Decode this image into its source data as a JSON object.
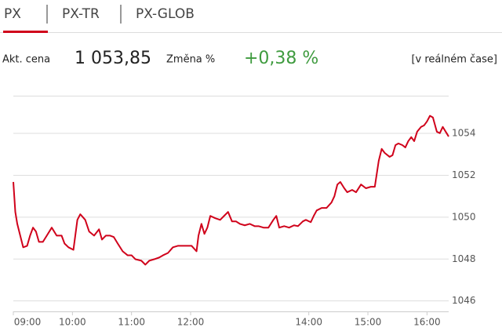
{
  "tabs": [
    "PX",
    "PX-TR",
    "PX-GLOB"
  ],
  "quote": {
    "price_label": "Akt. cena",
    "price": "1 053,85",
    "change_label": "Změna %",
    "change": "+0,38 %",
    "realtime": "[v reálném čase]"
  },
  "chart_data": {
    "type": "line",
    "color": "#d0021b",
    "grid": true,
    "xlim": [
      0,
      442
    ],
    "ylim": [
      1045.5,
      1055.8
    ],
    "xticks": [
      {
        "value": 0,
        "label": "09:00"
      },
      {
        "value": 60,
        "label": "10:00"
      },
      {
        "value": 120,
        "label": "11:00"
      },
      {
        "value": 180,
        "label": "12:00"
      },
      {
        "value": 300,
        "label": "14:00"
      },
      {
        "value": 360,
        "label": "15:00"
      },
      {
        "value": 420,
        "label": "16:00"
      }
    ],
    "yticks": [
      1046,
      1048,
      1050,
      1052,
      1054
    ],
    "x": [
      0,
      2,
      4,
      7,
      10,
      14,
      17,
      20,
      23,
      26,
      30,
      34,
      39,
      44,
      49,
      52,
      56,
      61,
      65,
      68,
      73,
      77,
      82,
      87,
      90,
      94,
      98,
      102,
      106,
      111,
      116,
      120,
      124,
      130,
      134,
      138,
      143,
      148,
      152,
      157,
      162,
      167,
      171,
      176,
      181,
      186,
      188,
      191,
      194,
      197,
      200,
      205,
      210,
      214,
      218,
      222,
      226,
      230,
      235,
      240,
      245,
      249,
      254,
      259,
      264,
      267,
      270,
      275,
      280,
      285,
      289,
      294,
      297,
      302,
      305,
      308,
      313,
      318,
      323,
      326,
      329,
      332,
      336,
      339,
      344,
      348,
      353,
      358,
      363,
      367,
      371,
      374,
      377,
      382,
      385,
      388,
      391,
      395,
      398,
      401,
      404,
      407,
      410,
      414,
      417,
      420,
      423,
      426,
      430,
      433,
      436,
      439,
      442
    ],
    "values": [
      1051.68,
      1050.25,
      1049.68,
      1049.12,
      1048.56,
      1048.63,
      1049.12,
      1049.5,
      1049.31,
      1048.82,
      1048.82,
      1049.12,
      1049.5,
      1049.12,
      1049.12,
      1048.74,
      1048.56,
      1048.44,
      1049.87,
      1050.14,
      1049.87,
      1049.31,
      1049.12,
      1049.42,
      1048.93,
      1049.12,
      1049.12,
      1049.05,
      1048.74,
      1048.37,
      1048.18,
      1048.18,
      1047.99,
      1047.92,
      1047.73,
      1047.92,
      1047.99,
      1048.07,
      1048.18,
      1048.29,
      1048.56,
      1048.63,
      1048.63,
      1048.63,
      1048.63,
      1048.37,
      1049.12,
      1049.68,
      1049.2,
      1049.5,
      1050.06,
      1049.95,
      1049.87,
      1050.06,
      1050.25,
      1049.8,
      1049.8,
      1049.68,
      1049.61,
      1049.68,
      1049.57,
      1049.57,
      1049.5,
      1049.5,
      1049.87,
      1050.06,
      1049.5,
      1049.57,
      1049.5,
      1049.61,
      1049.57,
      1049.8,
      1049.87,
      1049.76,
      1050.06,
      1050.32,
      1050.44,
      1050.44,
      1050.7,
      1051.0,
      1051.56,
      1051.68,
      1051.38,
      1051.19,
      1051.3,
      1051.19,
      1051.56,
      1051.38,
      1051.45,
      1051.45,
      1052.69,
      1053.26,
      1053.07,
      1052.88,
      1052.96,
      1053.44,
      1053.52,
      1053.44,
      1053.33,
      1053.63,
      1053.82,
      1053.63,
      1054.08,
      1054.31,
      1054.38,
      1054.57,
      1054.84,
      1054.76,
      1054.08,
      1054.01,
      1054.31,
      1054.08,
      1053.85
    ]
  }
}
